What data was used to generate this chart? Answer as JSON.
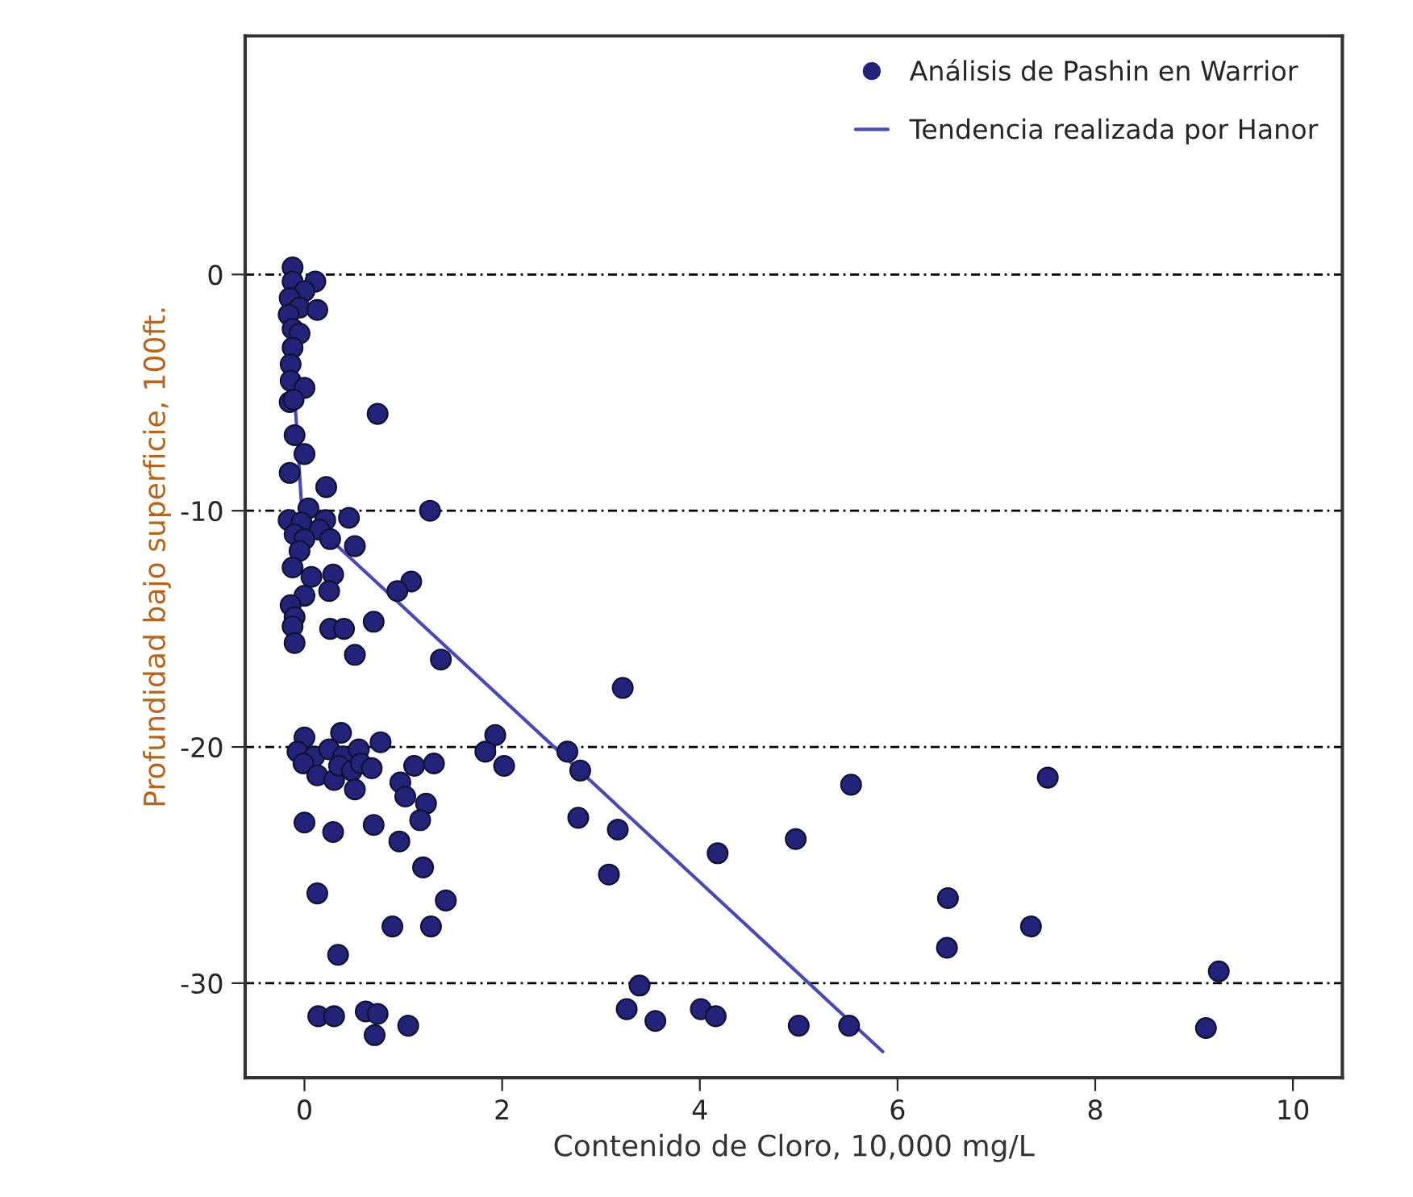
{
  "chart_data": {
    "type": "scatter",
    "xlabel": "Contenido de Cloro, 10,000 mg/L",
    "ylabel": "Profundidad bajo superficie, 100ft.",
    "xlim": [
      -0.6,
      10.5
    ],
    "ylim": [
      -34,
      10.1
    ],
    "xticks": [
      0,
      2,
      4,
      6,
      8,
      10
    ],
    "yticks": [
      0,
      -10,
      -20,
      -30
    ],
    "grid": "y",
    "legend": "top right",
    "series": [
      {
        "name": "Análisis de Pashin en Warrior",
        "marker": "circle",
        "color": "#23237a",
        "x": [
          -0.12,
          -0.12,
          0.11,
          0.0,
          -0.15,
          -0.05,
          0.13,
          -0.16,
          -0.12,
          -0.05,
          -0.12,
          -0.14,
          -0.14,
          0.0,
          -0.15,
          -0.11,
          0.74,
          -0.1,
          0.0,
          -0.15,
          0.22,
          0.04,
          1.27,
          -0.16,
          -0.03,
          0.21,
          0.45,
          -0.1,
          0.15,
          0.0,
          0.26,
          -0.05,
          0.51,
          -0.12,
          0.07,
          0.29,
          1.08,
          0.94,
          0.0,
          0.25,
          -0.14,
          -0.1,
          -0.12,
          0.26,
          0.4,
          0.7,
          -0.1,
          0.51,
          1.38,
          0.0,
          0.37,
          -0.07,
          0.1,
          0.25,
          0.39,
          0.55,
          0.77,
          -0.01,
          0.13,
          0.3,
          0.35,
          0.48,
          0.57,
          0.68,
          0.51,
          1.11,
          1.31,
          0.97,
          1.02,
          1.23,
          1.17,
          0.0,
          0.29,
          0.7,
          0.96,
          1.2,
          0.13,
          1.43,
          0.89,
          1.28,
          0.34,
          0.14,
          0.3,
          0.62,
          0.74,
          0.71,
          1.05,
          1.93,
          1.83,
          2.02,
          3.22,
          2.66,
          2.79,
          2.77,
          3.17,
          3.08,
          4.18,
          4.97,
          5.53,
          7.52,
          6.51,
          6.5,
          7.35,
          9.25,
          3.39,
          3.26,
          3.55,
          4.01,
          4.16,
          5.0,
          5.51,
          9.12
        ],
        "values": [
          0.3,
          -0.3,
          -0.3,
          -0.7,
          -1.0,
          -1.4,
          -1.5,
          -1.7,
          -2.3,
          -2.5,
          -3.1,
          -3.8,
          -4.5,
          -4.8,
          -5.4,
          -5.3,
          -5.9,
          -6.8,
          -7.6,
          -8.4,
          -9.0,
          -9.9,
          -10.0,
          -10.4,
          -10.5,
          -10.4,
          -10.3,
          -11.0,
          -10.8,
          -11.2,
          -11.2,
          -11.7,
          -11.5,
          -12.4,
          -12.8,
          -12.7,
          -13.0,
          -13.4,
          -13.6,
          -13.4,
          -14.0,
          -14.5,
          -14.9,
          -15.0,
          -15.0,
          -14.7,
          -15.6,
          -16.1,
          -16.3,
          -19.6,
          -19.4,
          -20.2,
          -20.4,
          -20.1,
          -20.4,
          -20.1,
          -19.8,
          -20.7,
          -21.2,
          -21.4,
          -20.8,
          -21.0,
          -20.7,
          -20.9,
          -21.8,
          -20.8,
          -20.7,
          -21.5,
          -22.1,
          -22.4,
          -23.1,
          -23.2,
          -23.6,
          -23.3,
          -24.0,
          -25.1,
          -26.2,
          -26.5,
          -27.6,
          -27.6,
          -28.8,
          -31.4,
          -31.4,
          -31.2,
          -31.3,
          -32.2,
          -31.8,
          -19.5,
          -20.2,
          -20.8,
          -17.5,
          -20.2,
          -21.0,
          -23.0,
          -23.5,
          -25.4,
          -24.5,
          -23.9,
          -21.6,
          -21.3,
          -26.4,
          -28.5,
          -27.6,
          -29.5,
          -30.1,
          -31.1,
          -31.6,
          -31.1,
          -31.4,
          -31.8,
          -31.8,
          -31.9
        ]
      },
      {
        "name": "Tendencia realizada por Hanor",
        "type": "line",
        "marker": "none",
        "color": "#4a4ab4",
        "x": [
          -0.1,
          -0.02,
          0.18,
          5.85
        ],
        "values": [
          -5.1,
          -10.4,
          -10.9,
          -32.9
        ]
      }
    ]
  }
}
